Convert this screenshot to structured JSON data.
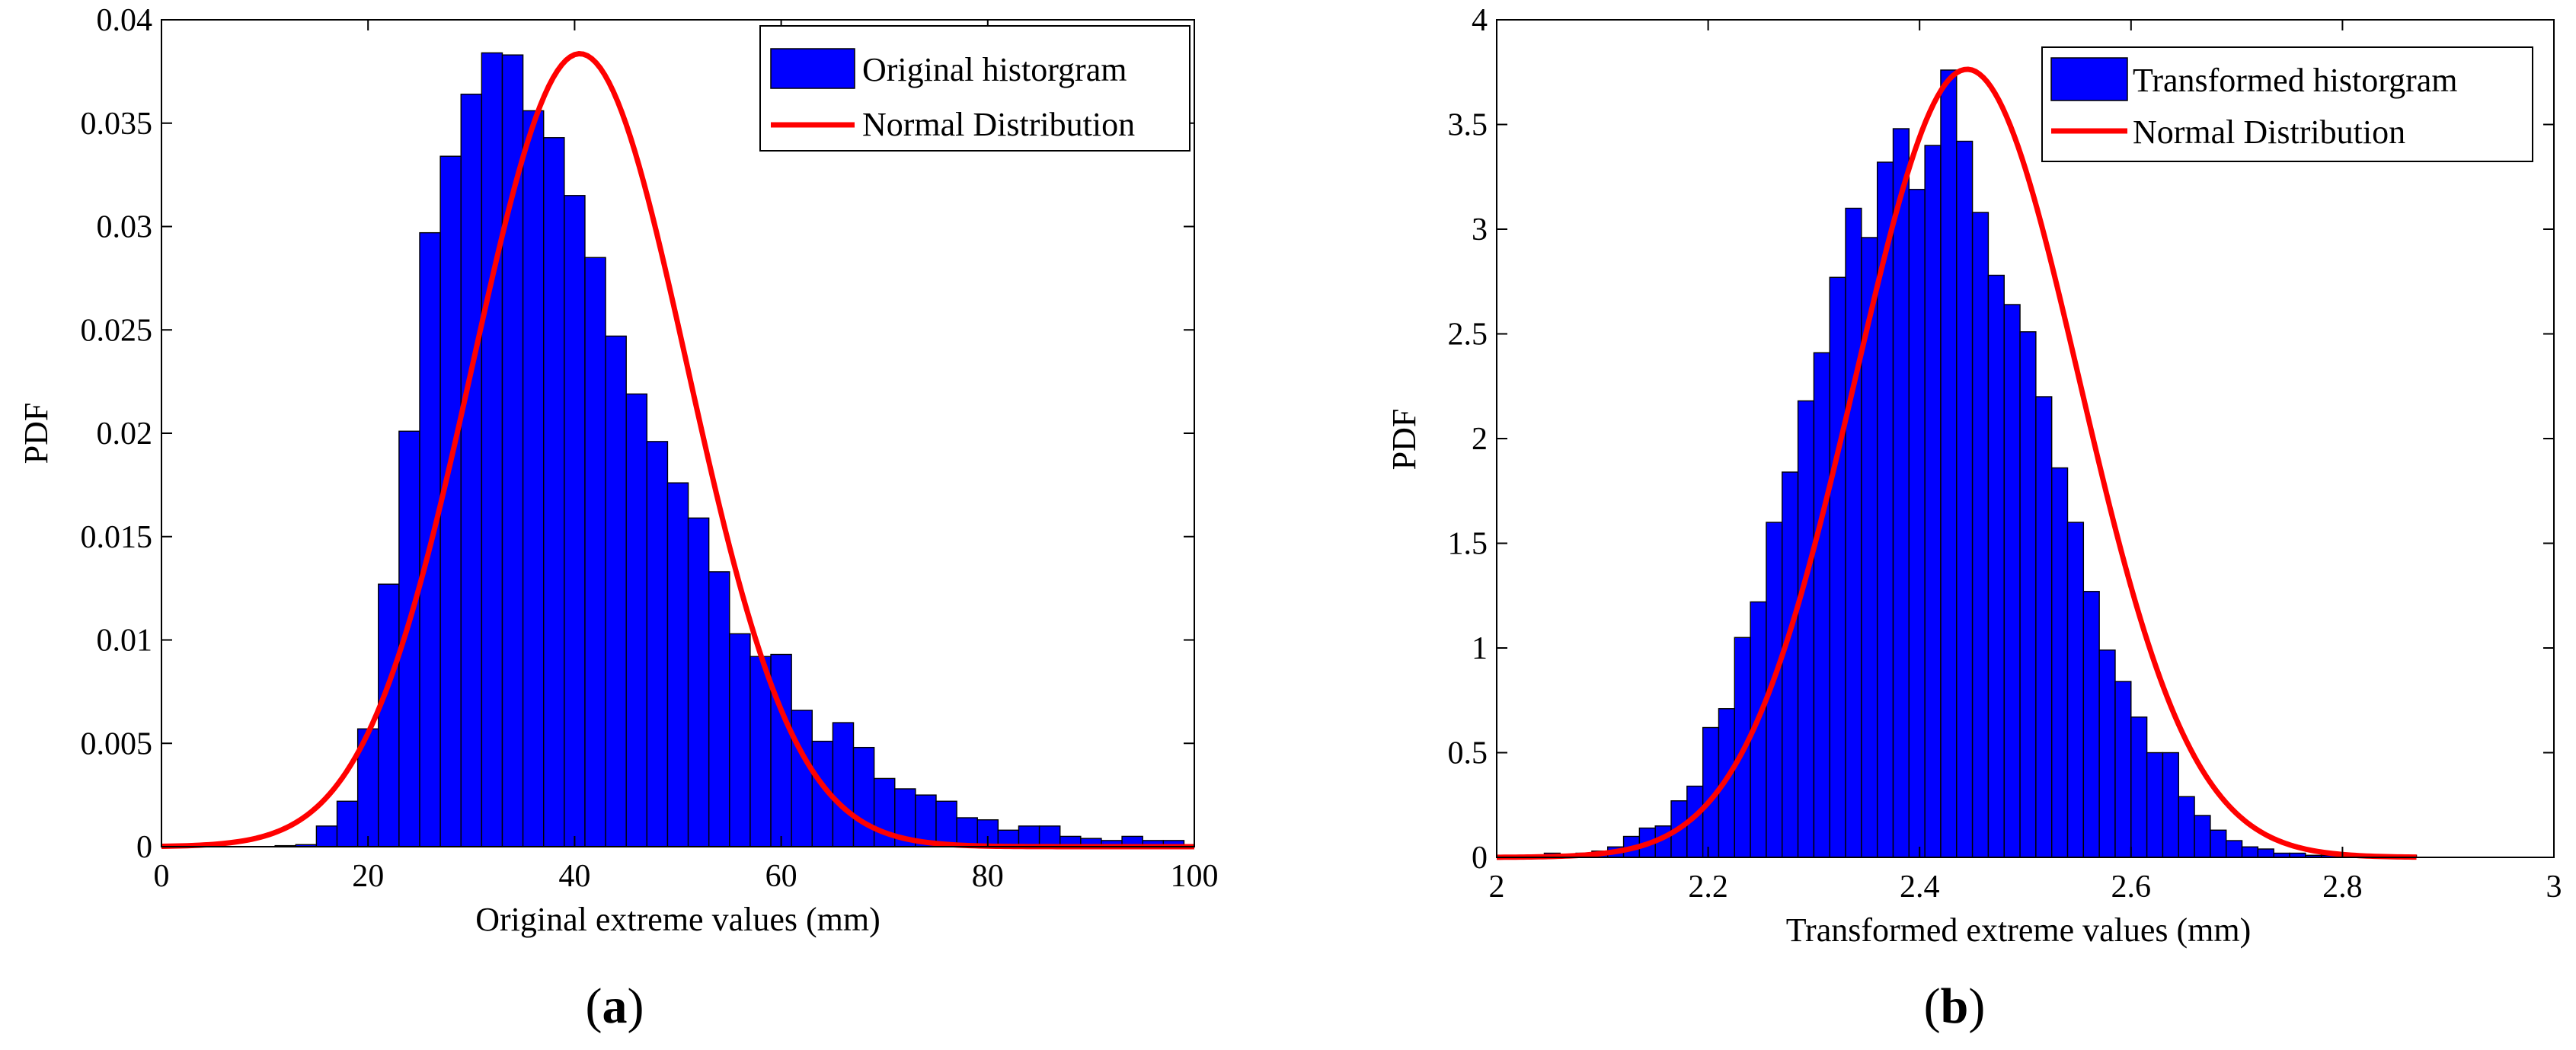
{
  "chart_data": [
    {
      "type": "bar",
      "panel": "a",
      "panel_label": "a",
      "xlabel": "Original extreme values (mm)",
      "ylabel": "PDF",
      "xlim": [
        0,
        100
      ],
      "ylim": [
        0,
        0.04
      ],
      "xticks": [
        0,
        20,
        40,
        60,
        80,
        100
      ],
      "xtick_labels": [
        "0",
        "20",
        "40",
        "60",
        "80",
        "100"
      ],
      "yticks": [
        0,
        0.005,
        0.01,
        0.015,
        0.02,
        0.025,
        0.03,
        0.035,
        0.04
      ],
      "ytick_labels": [
        "0",
        "0.005",
        "0.01",
        "0.015",
        "0.02",
        "0.025",
        "0.03",
        "0.035",
        "0.04"
      ],
      "legend_position": "top-right",
      "bar_color": "#0000ff",
      "curve_color": "#ff0000",
      "series": [
        {
          "name": "Original historgram",
          "kind": "histogram",
          "bin_edges": [
            11,
            13,
            15,
            17,
            19,
            21,
            23,
            25,
            27,
            29,
            31,
            33,
            35,
            37,
            39,
            41,
            43,
            45,
            47,
            49,
            51,
            53,
            55,
            57,
            59,
            61,
            63,
            65,
            67,
            69,
            71,
            73,
            75,
            77,
            79,
            81,
            83,
            85,
            87,
            89,
            91,
            93,
            95,
            97,
            99
          ],
          "values": [
            5e-05,
            0.0001,
            0.001,
            0.0022,
            0.0057,
            0.0127,
            0.0201,
            0.0297,
            0.0334,
            0.0364,
            0.0384,
            0.0383,
            0.0356,
            0.0343,
            0.0315,
            0.0285,
            0.0247,
            0.0219,
            0.0196,
            0.0176,
            0.0159,
            0.0133,
            0.0103,
            0.0092,
            0.0093,
            0.0066,
            0.0051,
            0.006,
            0.0048,
            0.0033,
            0.0028,
            0.0025,
            0.0022,
            0.0014,
            0.0013,
            0.0008,
            0.001,
            0.001,
            0.0005,
            0.0004,
            0.0003,
            0.0005,
            0.0003,
            0.0003
          ]
        },
        {
          "name": "Normal Distribution",
          "kind": "normal_curve",
          "mean": 40.5,
          "std": 10.4,
          "x_range": [
            0,
            100
          ]
        }
      ]
    },
    {
      "type": "bar",
      "panel": "b",
      "panel_label": "b",
      "xlabel": "Transformed extreme values (mm)",
      "ylabel": "PDF",
      "xlim": [
        2,
        3
      ],
      "ylim": [
        0,
        4
      ],
      "xticks": [
        2,
        2.2,
        2.4,
        2.6,
        2.8,
        3
      ],
      "xtick_labels": [
        "2",
        "2.2",
        "2.4",
        "2.6",
        "2.8",
        "3"
      ],
      "yticks": [
        0,
        0.5,
        1,
        1.5,
        2,
        2.5,
        3,
        3.5,
        4
      ],
      "ytick_labels": [
        "0",
        "0.5",
        "1",
        "1.5",
        "2",
        "2.5",
        "3",
        "3.5",
        "4"
      ],
      "legend_position": "top-right",
      "bar_color": "#0000ff",
      "curve_color": "#ff0000",
      "series": [
        {
          "name": "Transformed historgram",
          "kind": "histogram",
          "bin_edges": [
            2.045,
            2.06,
            2.075,
            2.09,
            2.105,
            2.12,
            2.135,
            2.15,
            2.165,
            2.18,
            2.195,
            2.21,
            2.225,
            2.24,
            2.255,
            2.27,
            2.285,
            2.3,
            2.315,
            2.33,
            2.345,
            2.36,
            2.375,
            2.39,
            2.405,
            2.42,
            2.435,
            2.45,
            2.465,
            2.48,
            2.495,
            2.51,
            2.525,
            2.54,
            2.555,
            2.57,
            2.585,
            2.6,
            2.615,
            2.63,
            2.645,
            2.66,
            2.675,
            2.69,
            2.705,
            2.72,
            2.735,
            2.75,
            2.765,
            2.78,
            2.795,
            2.81,
            2.825,
            2.84,
            2.855,
            2.87
          ],
          "values": [
            0.02,
            0.01,
            0.02,
            0.03,
            0.05,
            0.1,
            0.14,
            0.15,
            0.27,
            0.34,
            0.62,
            0.71,
            1.05,
            1.22,
            1.6,
            1.84,
            2.18,
            2.41,
            2.77,
            3.1,
            2.96,
            3.32,
            3.48,
            3.19,
            3.4,
            3.76,
            3.42,
            3.08,
            2.78,
            2.64,
            2.51,
            2.2,
            1.86,
            1.6,
            1.27,
            0.99,
            0.84,
            0.67,
            0.5,
            0.5,
            0.29,
            0.2,
            0.13,
            0.08,
            0.05,
            0.04,
            0.02,
            0.02,
            0.01,
            0.01,
            0.01,
            0.01,
            0.01,
            0.01,
            0.01
          ]
        },
        {
          "name": "Normal Distribution",
          "kind": "normal_curve",
          "mean": 2.445,
          "std": 0.106,
          "x_range": [
            2,
            2.87
          ]
        }
      ]
    }
  ]
}
